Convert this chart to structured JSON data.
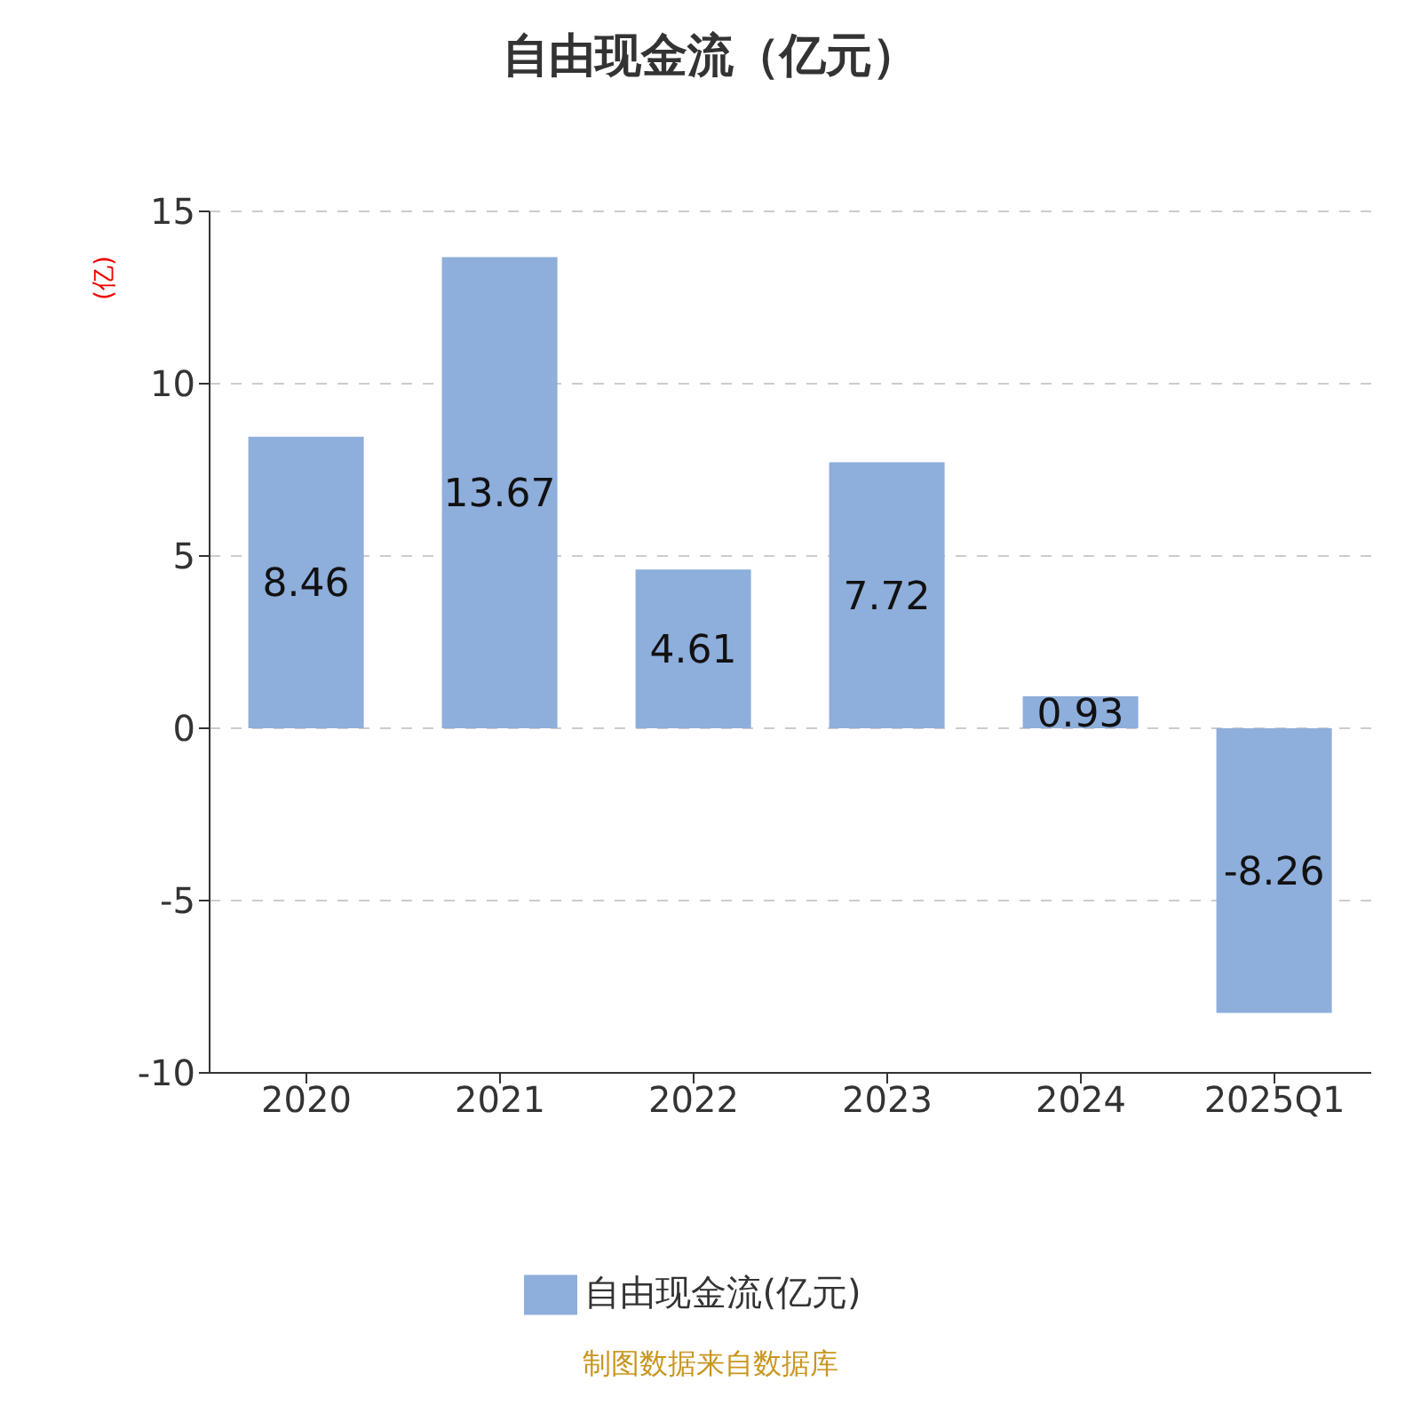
{
  "chart_data": {
    "type": "bar",
    "title": "自由现金流（亿元）",
    "ylabel": "(亿)",
    "categories": [
      "2020",
      "2021",
      "2022",
      "2023",
      "2024",
      "2025Q1"
    ],
    "series": [
      {
        "name": "自由现金流(亿元)",
        "color": "#8eaedb",
        "values": [
          8.46,
          13.67,
          4.61,
          7.72,
          0.93,
          -8.26
        ]
      }
    ],
    "ylim": [
      -10,
      15
    ],
    "yticks": [
      -10,
      -5,
      0,
      5,
      10,
      15
    ],
    "grid": "y",
    "legend": "bottom",
    "data_labels": true,
    "annotations": [
      "制图数据来自数据库"
    ]
  }
}
